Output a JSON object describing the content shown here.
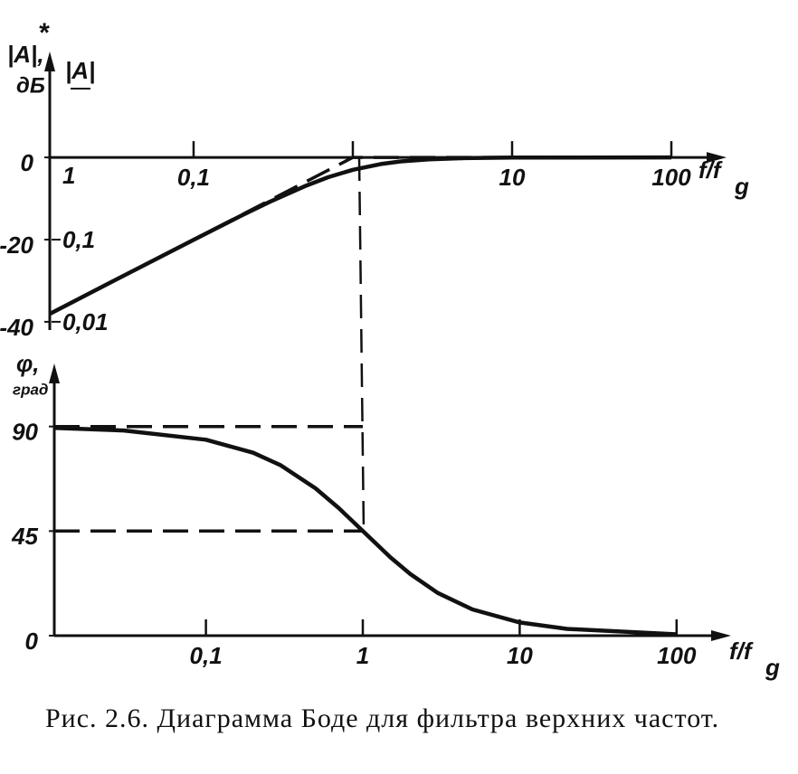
{
  "chart_data": [
    {
      "type": "line",
      "xscale": "log",
      "xlim": [
        0.0125,
        200
      ],
      "ylim": [
        -42,
        24
      ],
      "yscale": "linear",
      "xticks": [
        {
          "value": 0.1,
          "label": "0,1"
        },
        {
          "value": 1,
          "label": null
        },
        10,
        100
      ],
      "yticks": [
        0,
        -20,
        -40
      ],
      "y2scale": "log",
      "y2lim": [
        0.00794,
        15.85
      ],
      "y2ticks": [
        1,
        {
          "value": 0.1,
          "label": "0,1"
        },
        {
          "value": 0.01,
          "label": "0,01"
        }
      ],
      "ylabel": "|A|,",
      "ylabel_unit": "дБ",
      "y2label": "|A|",
      "annotation": "*",
      "xlabel": "f/f",
      "xlabel_sub": "g",
      "series": [
        {
          "color": "#111111",
          "style": "solid",
          "x": [
            0.0125,
            0.03,
            0.1,
            0.2,
            0.3,
            0.5,
            0.7,
            1,
            1.5,
            2,
            3,
            5,
            10,
            100
          ],
          "values": [
            -38.06,
            -30.46,
            -20.04,
            -14.15,
            -10.83,
            -6.99,
            -4.83,
            -3.01,
            -1.6,
            -0.97,
            -0.46,
            -0.17,
            -0.04,
            0
          ]
        },
        {
          "color": "#111111",
          "style": "dashed",
          "x": [
            0.0125,
            1,
            100
          ],
          "values": [
            -38.06,
            0,
            0
          ]
        }
      ]
    },
    {
      "type": "line",
      "xscale": "log",
      "xlim": [
        0.0108,
        200
      ],
      "ylim": [
        0,
        114
      ],
      "yscale": "linear",
      "xticks": [
        {
          "value": 0.1,
          "label": "0,1"
        },
        1,
        10,
        100
      ],
      "yticks": [
        0,
        45,
        90
      ],
      "ylabel": "φ,",
      "ylabel_unit": "град",
      "xlabel": "f/f",
      "xlabel_sub": "g",
      "series": [
        {
          "color": "#111111",
          "style": "solid",
          "x": [
            0.0108,
            0.03,
            0.1,
            0.2,
            0.3,
            0.5,
            0.7,
            1,
            1.5,
            2,
            3,
            5,
            10,
            20,
            100
          ],
          "values": [
            89.4,
            88.3,
            84.3,
            78.7,
            73.3,
            63.4,
            55,
            45,
            33.7,
            26.6,
            18.4,
            11.3,
            5.7,
            2.9,
            0.6
          ]
        },
        {
          "color": "#111111",
          "style": "dashed",
          "x": [
            0.0108,
            1
          ],
          "values": [
            90,
            90
          ]
        },
        {
          "color": "#111111",
          "style": "dashed",
          "x": [
            0.0108,
            1
          ],
          "values": [
            45,
            45
          ]
        }
      ]
    }
  ],
  "caption": "Рис. 2.6. Диаграмма Боде для фильтра верхних частот."
}
